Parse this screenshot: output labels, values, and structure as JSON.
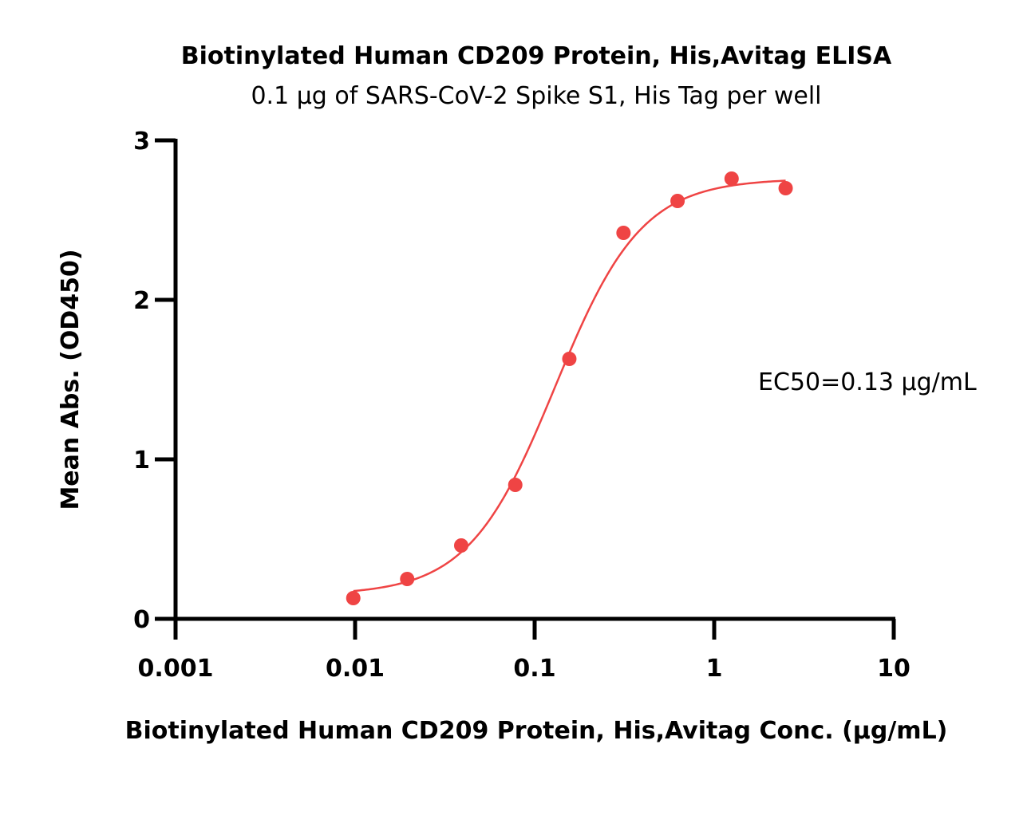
{
  "chart_data": {
    "type": "scatter",
    "title": "Biotinylated Human CD209 Protein, His,Avitag ELISA",
    "subtitle": "0.1 μg of SARS-CoV-2 Spike S1, His Tag per well",
    "xlabel": "Biotinylated Human CD209 Protein, His,Avitag Conc. (μg/mL)",
    "ylabel": "Mean Abs. (OD450)",
    "xscale": "log",
    "xlim": [
      0.001,
      10
    ],
    "ylim": [
      0,
      3
    ],
    "x_ticks": [
      0.001,
      0.01,
      0.1,
      1,
      10
    ],
    "x_tick_labels": [
      "0.001",
      "0.01",
      "0.1",
      "1",
      "10"
    ],
    "y_ticks": [
      0,
      1,
      2,
      3
    ],
    "y_tick_labels": [
      "0",
      "1",
      "2",
      "3"
    ],
    "grid": false,
    "color": "#ef4444",
    "series": [
      {
        "x": [
          0.00977,
          0.0195,
          0.039,
          0.078,
          0.156,
          0.3125,
          0.625,
          1.25,
          2.5
        ],
        "y": [
          0.13,
          0.25,
          0.46,
          0.84,
          1.63,
          2.42,
          2.62,
          2.76,
          2.7
        ]
      }
    ],
    "fit": {
      "model": "4PL",
      "bottom": 0.15,
      "top": 2.76,
      "ec50": 0.13,
      "hill": 1.8,
      "x_range": [
        0.00977,
        2.5
      ]
    },
    "annotations": [
      "EC50=0.13 μg/mL"
    ]
  }
}
